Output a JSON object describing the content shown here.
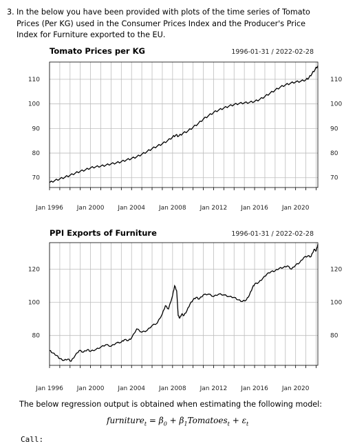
{
  "question": {
    "number": "3.",
    "text": "In the below you have been provided with plots of the time series of Tomato Prices (Per KG) used in the Consumer Prices Index and the Producer's Price Index for Furniture exported to the EU."
  },
  "chart_data": [
    {
      "type": "line",
      "title": "Tomato Prices per KG",
      "date_range": "1996-01-31 / 2022-02-28",
      "x_ticks": [
        "Jan 1996",
        "Jan 2000",
        "Jan 2004",
        "Jan 2008",
        "Jan 2012",
        "Jan 2016",
        "Jan 2020"
      ],
      "y_ticks": [
        70,
        80,
        90,
        100,
        110
      ],
      "xlim": [
        1996.0,
        2022.17
      ],
      "ylim": [
        66,
        117
      ],
      "series": [
        {
          "x": [
            1996.0,
            1996.5,
            1997.0,
            1997.5,
            1998.0,
            1998.5,
            1999.0,
            1999.5,
            2000.0,
            2000.5,
            2001.0,
            2001.5,
            2002.0,
            2002.5,
            2003.0,
            2003.5,
            2004.0,
            2004.5,
            2005.0,
            2005.5,
            2006.0,
            2006.5,
            2007.0,
            2007.5,
            2008.0,
            2008.3,
            2008.6,
            2009.0,
            2009.5,
            2010.0,
            2010.5,
            2011.0,
            2011.5,
            2012.0,
            2012.5,
            2013.0,
            2013.5,
            2014.0,
            2014.5,
            2015.0,
            2015.5,
            2016.0,
            2016.5,
            2017.0,
            2017.5,
            2018.0,
            2018.5,
            2019.0,
            2019.5,
            2020.0,
            2020.5,
            2021.0,
            2021.3,
            2021.6,
            2021.9,
            2022.17
          ],
          "values": [
            68.0,
            68.8,
            69.5,
            70.2,
            71.0,
            71.8,
            72.6,
            73.2,
            74.0,
            74.4,
            74.7,
            75.1,
            75.6,
            76.0,
            76.5,
            77.2,
            77.8,
            78.5,
            79.5,
            80.6,
            81.8,
            82.8,
            83.8,
            85.0,
            86.5,
            87.3,
            86.9,
            88.0,
            89.0,
            90.5,
            92.0,
            93.8,
            95.2,
            96.5,
            97.5,
            98.3,
            99.1,
            99.7,
            100.2,
            100.4,
            100.6,
            101.0,
            101.8,
            103.0,
            104.3,
            105.6,
            106.8,
            107.7,
            108.4,
            108.9,
            109.2,
            109.8,
            110.6,
            112.3,
            114.0,
            115.5
          ]
        }
      ]
    },
    {
      "type": "line",
      "title": "PPI Exports of Furniture",
      "date_range": "1996-01-31 / 2022-02-28",
      "x_ticks": [
        "Jan 1996",
        "Jan 2000",
        "Jan 2004",
        "Jan 2008",
        "Jan 2012",
        "Jan 2016",
        "Jan 2020"
      ],
      "y_ticks": [
        80,
        100,
        120
      ],
      "xlim": [
        1996.0,
        2022.17
      ],
      "ylim": [
        62,
        136
      ],
      "series": [
        {
          "x": [
            1996.0,
            1996.3,
            1996.7,
            1997.0,
            1997.4,
            1997.8,
            1998.1,
            1998.5,
            1998.9,
            1999.3,
            1999.7,
            2000.0,
            2000.5,
            2001.0,
            2001.5,
            2002.0,
            2002.5,
            2003.0,
            2003.3,
            2003.7,
            2004.0,
            2004.5,
            2005.0,
            2005.5,
            2006.0,
            2006.5,
            2007.0,
            2007.3,
            2007.6,
            2008.0,
            2008.2,
            2008.4,
            2008.55,
            2008.7,
            2008.9,
            2009.1,
            2009.4,
            2009.7,
            2010.0,
            2010.3,
            2010.6,
            2011.0,
            2011.5,
            2012.0,
            2012.5,
            2013.0,
            2013.5,
            2014.0,
            2014.4,
            2014.8,
            2015.2,
            2015.5,
            2015.8,
            2016.0,
            2016.4,
            2016.8,
            2017.2,
            2017.6,
            2018.0,
            2018.4,
            2018.8,
            2019.2,
            2019.6,
            2020.0,
            2020.4,
            2020.8,
            2021.2,
            2021.5,
            2021.8,
            2022.0,
            2022.17
          ],
          "values": [
            71.0,
            69.5,
            68.0,
            66.0,
            65.0,
            65.8,
            64.5,
            68.0,
            71.0,
            70.0,
            71.5,
            70.5,
            71.5,
            73.0,
            74.5,
            73.5,
            75.5,
            76.0,
            77.5,
            77.0,
            78.5,
            84.0,
            82.0,
            83.0,
            86.0,
            87.5,
            93.0,
            98.0,
            96.0,
            104.0,
            110.0,
            107.0,
            92.0,
            90.5,
            93.0,
            92.0,
            95.0,
            99.0,
            101.5,
            103.0,
            102.0,
            104.5,
            105.0,
            103.5,
            105.0,
            104.5,
            103.5,
            103.0,
            101.5,
            100.5,
            101.5,
            104.5,
            109.0,
            111.0,
            112.0,
            114.5,
            117.0,
            118.5,
            119.0,
            120.5,
            121.0,
            122.0,
            120.0,
            122.5,
            124.0,
            127.0,
            128.0,
            127.5,
            132.0,
            131.0,
            135.0
          ]
        }
      ]
    }
  ],
  "regression_text": "The below regression output is obtained when estimating the following model:",
  "formula": {
    "lhs": "furniture",
    "lhs_sub": "t",
    "eq": " = ",
    "b0": "β",
    "b0_sub": "0",
    "plus1": " + ",
    "b1": "β",
    "b1_sub": "1",
    "var": "Tomatoes",
    "var_sub": "t",
    "plus2": " + ",
    "err": "ε",
    "err_sub": "t"
  },
  "call_label": "Call:"
}
